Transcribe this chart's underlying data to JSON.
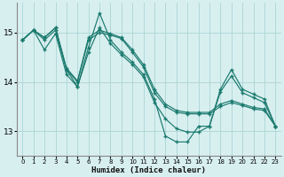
{
  "xlabel": "Humidex (Indice chaleur)",
  "background_color": "#d8eff0",
  "grid_color": "#b0d8d8",
  "line_color": "#1a7a6e",
  "xlim": [
    -0.5,
    23.5
  ],
  "ylim": [
    12.5,
    15.6
  ],
  "yticks": [
    13,
    14,
    15
  ],
  "xticks": [
    0,
    1,
    2,
    3,
    4,
    5,
    6,
    7,
    8,
    9,
    10,
    11,
    12,
    13,
    14,
    15,
    16,
    17,
    18,
    19,
    20,
    21,
    22,
    23
  ],
  "series": [
    [
      14.85,
      15.05,
      14.85,
      15.05,
      14.25,
      13.9,
      14.7,
      15.4,
      14.85,
      14.6,
      14.4,
      14.15,
      13.65,
      12.9,
      12.78,
      12.78,
      13.1,
      13.1,
      13.85,
      14.25,
      13.85,
      13.75,
      13.65,
      13.1
    ],
    [
      14.85,
      15.05,
      14.65,
      14.98,
      14.15,
      13.9,
      14.6,
      15.1,
      14.78,
      14.55,
      14.35,
      14.1,
      13.58,
      13.25,
      13.05,
      12.98,
      12.98,
      13.1,
      13.8,
      14.12,
      13.78,
      13.68,
      13.58,
      13.1
    ],
    [
      14.85,
      15.05,
      14.9,
      15.1,
      14.25,
      14.0,
      14.85,
      15.0,
      14.95,
      14.88,
      14.6,
      14.3,
      13.78,
      13.5,
      13.38,
      13.35,
      13.35,
      13.35,
      13.5,
      13.58,
      13.52,
      13.45,
      13.42,
      13.1
    ],
    [
      14.85,
      15.05,
      14.9,
      15.1,
      14.28,
      14.02,
      14.9,
      15.05,
      14.98,
      14.9,
      14.65,
      14.35,
      13.85,
      13.55,
      13.42,
      13.38,
      13.38,
      13.38,
      13.55,
      13.62,
      13.55,
      13.48,
      13.45,
      13.1
    ]
  ]
}
